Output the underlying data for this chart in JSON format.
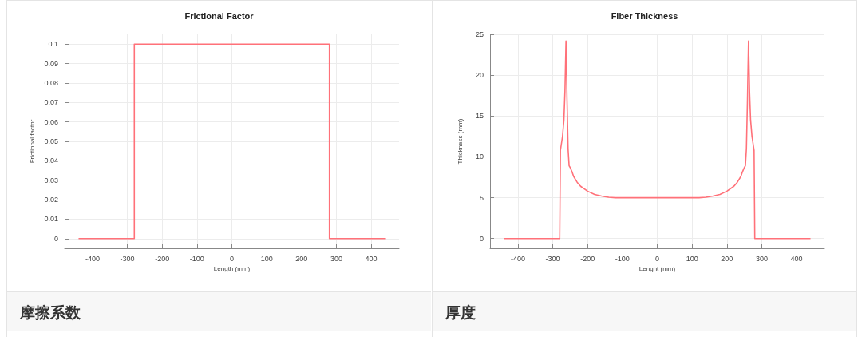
{
  "chart_data": [
    {
      "type": "line",
      "title": "Frictional Factor",
      "xlabel": "Length (mm)",
      "ylabel": "Frictional factor",
      "annotations": [
        "摩擦系数"
      ],
      "grid": true,
      "marker": "none",
      "line_style": "solid",
      "xlim": [
        -480,
        480
      ],
      "ylim": [
        -0.005,
        0.105
      ],
      "xticks": [
        -400,
        -300,
        -200,
        -100,
        0,
        100,
        200,
        300,
        400
      ],
      "yticks": [
        0,
        0.01,
        0.02,
        0.03,
        0.04,
        0.05,
        0.06,
        0.07,
        0.08,
        0.09,
        0.1
      ],
      "series": [
        {
          "color": "#ff7179",
          "x": [
            -440,
            -280,
            -280,
            280,
            280,
            440
          ],
          "values": [
            0,
            0,
            0.1,
            0.1,
            0,
            0
          ]
        }
      ]
    },
    {
      "type": "line",
      "title": "Fiber Thickness",
      "xlabel": "Lenght (mm)",
      "ylabel": "Thickness (mm)",
      "annotations": [
        "厚度"
      ],
      "grid": true,
      "marker": "none",
      "line_style": "solid",
      "xlim": [
        -480,
        480
      ],
      "ylim": [
        -1.2,
        25
      ],
      "xticks": [
        -400,
        -300,
        -200,
        -100,
        0,
        100,
        200,
        300,
        400
      ],
      "yticks": [
        0,
        5,
        10,
        15,
        20,
        25
      ],
      "series": [
        {
          "color": "#ff7179",
          "x": [
            -440,
            -280,
            -278,
            -272,
            -268,
            -265,
            -262,
            -259,
            -256,
            -253,
            -250,
            -245,
            -240,
            -230,
            -220,
            -200,
            -180,
            -160,
            -140,
            -120,
            -100,
            0,
            100,
            120,
            140,
            160,
            180,
            200,
            220,
            230,
            240,
            245,
            250,
            253,
            256,
            259,
            262,
            265,
            268,
            272,
            278,
            280,
            440
          ],
          "values": [
            0,
            0,
            10.8,
            12.5,
            14.5,
            18,
            24.2,
            17,
            11,
            8.9,
            8.7,
            8.2,
            7.6,
            6.9,
            6.4,
            5.8,
            5.4,
            5.2,
            5.05,
            5,
            5,
            5,
            5,
            5,
            5.05,
            5.2,
            5.4,
            5.8,
            6.4,
            6.9,
            7.6,
            8.2,
            8.7,
            8.9,
            11,
            17,
            24.2,
            18,
            14.5,
            12.5,
            10.8,
            0,
            0
          ]
        }
      ]
    }
  ]
}
